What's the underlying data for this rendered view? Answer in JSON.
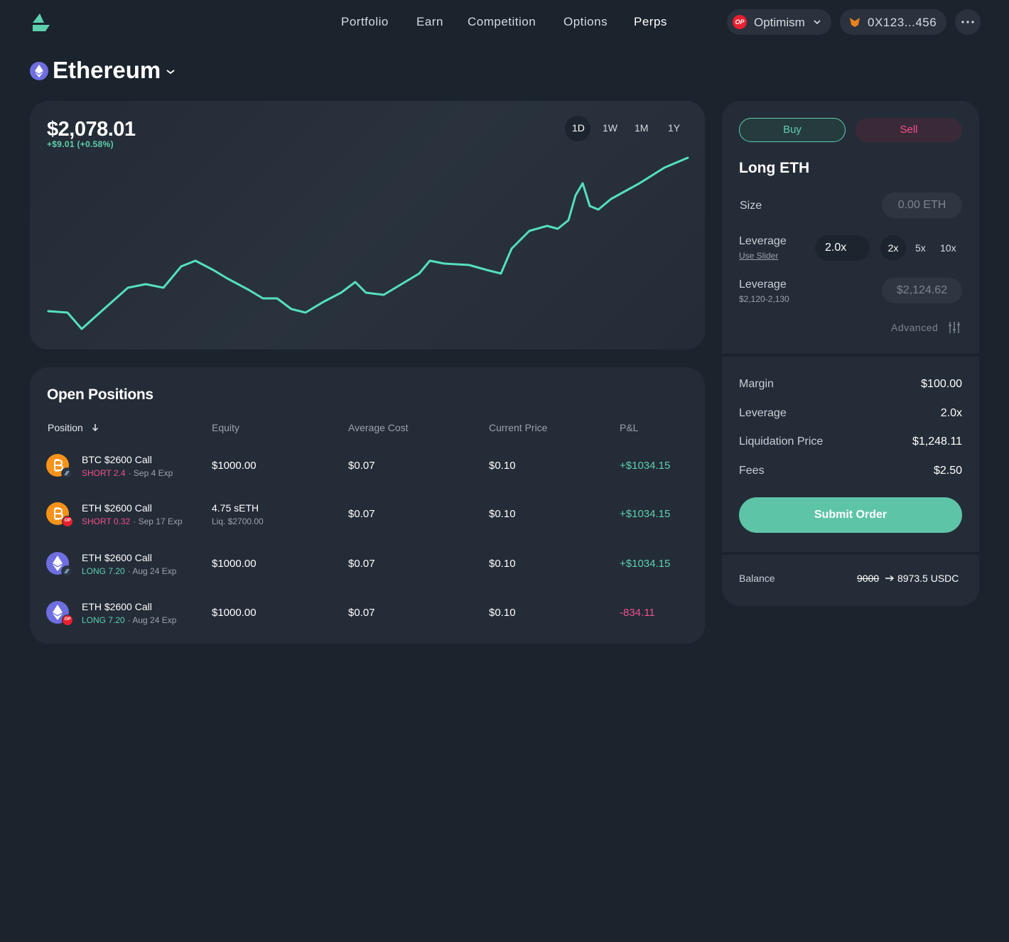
{
  "nav": {
    "items": [
      "Portfolio",
      "Earn",
      "Competition",
      "Options",
      "Perps"
    ],
    "network_badge": "OP",
    "network": "Optimism",
    "wallet": "0X123...456"
  },
  "asset": {
    "name": "Ethereum"
  },
  "price": {
    "value": "$2,078.01",
    "change": "+$9.01 (+0.58%)",
    "ranges": [
      "1D",
      "1W",
      "1M",
      "1Y"
    ]
  },
  "positions": {
    "title": "Open Positions",
    "columns": [
      "Position",
      "Equity",
      "Average Cost",
      "Current Price",
      "P&L"
    ],
    "rows": [
      {
        "name": "BTC $2600 Call",
        "side": "SHORT 2.4",
        "expiry": "· Sep 4 Exp",
        "equity": "$1000.00",
        "average_cost": "$0.07",
        "current_price": "$0.10",
        "pnl": "+$1034.15"
      },
      {
        "name": "ETH $2600 Call",
        "badge": "OP",
        "side": "SHORT 0.32",
        "expiry": "· Sep 17 Exp",
        "equity": "4.75 sETH",
        "equity_sub": "Liq. $2700.00",
        "average_cost": "$0.07",
        "current_price": "$0.10",
        "pnl": "+$1034.15"
      },
      {
        "name": "ETH $2600 Call",
        "side": "LONG 7.20",
        "expiry": "· Aug 24 Exp",
        "equity": "$1000.00",
        "average_cost": "$0.07",
        "current_price": "$0.10",
        "pnl": "+$1034.15"
      },
      {
        "name": "ETH $2600 Call",
        "badge": "OP",
        "side": "LONG 7.20",
        "expiry": "· Aug 24 Exp",
        "equity": "$1000.00",
        "average_cost": "$0.07",
        "current_price": "$0.10",
        "pnl": "-834.11"
      }
    ]
  },
  "order": {
    "tabs": [
      "Buy",
      "Sell"
    ],
    "title": "Long ETH",
    "size_label": "Size",
    "size_placeholder": "0.00 ETH",
    "leverage_label": "Leverage",
    "slider_link": "Use Slider",
    "leverage_value": "2.0x",
    "presets": [
      "2x",
      "5x",
      "10x"
    ],
    "limit_label": "Leverage",
    "limit_range": "$2,120-2,130",
    "limit_price": "$2,124.62",
    "advanced": "Advanced",
    "summary": [
      [
        "Margin",
        "$100.00"
      ],
      [
        "Leverage",
        "2.0x"
      ],
      [
        "Liquidation Price",
        "$1,248.11"
      ],
      [
        "Fees",
        "$2.50"
      ]
    ],
    "submit": "Submit Order",
    "balance_label": "Balance",
    "balance_old": "9000",
    "balance_new": "8973.5 USDC"
  }
}
